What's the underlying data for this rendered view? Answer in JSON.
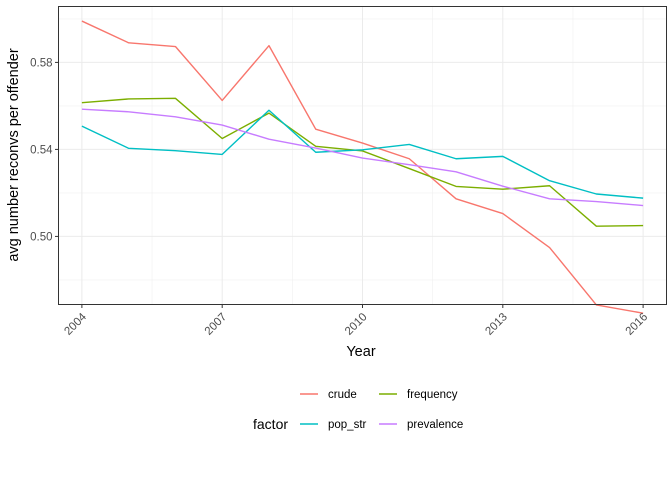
{
  "chart_data": {
    "type": "line",
    "xlabel": "Year",
    "ylabel": "avg number reconvs per offender",
    "x": [
      2004,
      2005,
      2006,
      2007,
      2008,
      2009,
      2010,
      2011,
      2012,
      2013,
      2014,
      2015,
      2016
    ],
    "x_ticks": [
      "2004",
      "2007",
      "2010",
      "2013",
      "2016"
    ],
    "y_ticks": [
      "0.50",
      "0.54",
      "0.58"
    ],
    "xlim": [
      2003.5,
      2016.5
    ],
    "ylim": [
      0.4687,
      0.6057
    ],
    "grid": true,
    "legend": {
      "title": "factor",
      "position": "bottom",
      "entries": [
        "crude",
        "frequency",
        "pop_str",
        "prevalence"
      ]
    },
    "series": [
      {
        "name": "crude",
        "color": "#F8766D",
        "values": [
          0.599,
          0.589,
          0.5873,
          0.5625,
          0.5877,
          0.5493,
          0.5429,
          0.5357,
          0.5173,
          0.5105,
          0.4949,
          0.4685,
          0.4647
        ]
      },
      {
        "name": "frequency",
        "color": "#7CAE00",
        "values": [
          0.5615,
          0.5632,
          0.5635,
          0.545,
          0.5567,
          0.5414,
          0.5393,
          0.5312,
          0.523,
          0.5217,
          0.5233,
          0.5047,
          0.505
        ]
      },
      {
        "name": "pop_str",
        "color": "#00BFC4",
        "values": [
          0.5507,
          0.5405,
          0.5394,
          0.5377,
          0.558,
          0.5387,
          0.5398,
          0.5423,
          0.5357,
          0.5368,
          0.5256,
          0.5195,
          0.5176
        ]
      },
      {
        "name": "prevalence",
        "color": "#C77CFF",
        "values": [
          0.5585,
          0.5573,
          0.555,
          0.5512,
          0.5447,
          0.5406,
          0.536,
          0.533,
          0.5297,
          0.5231,
          0.5173,
          0.516,
          0.5142
        ]
      }
    ]
  }
}
